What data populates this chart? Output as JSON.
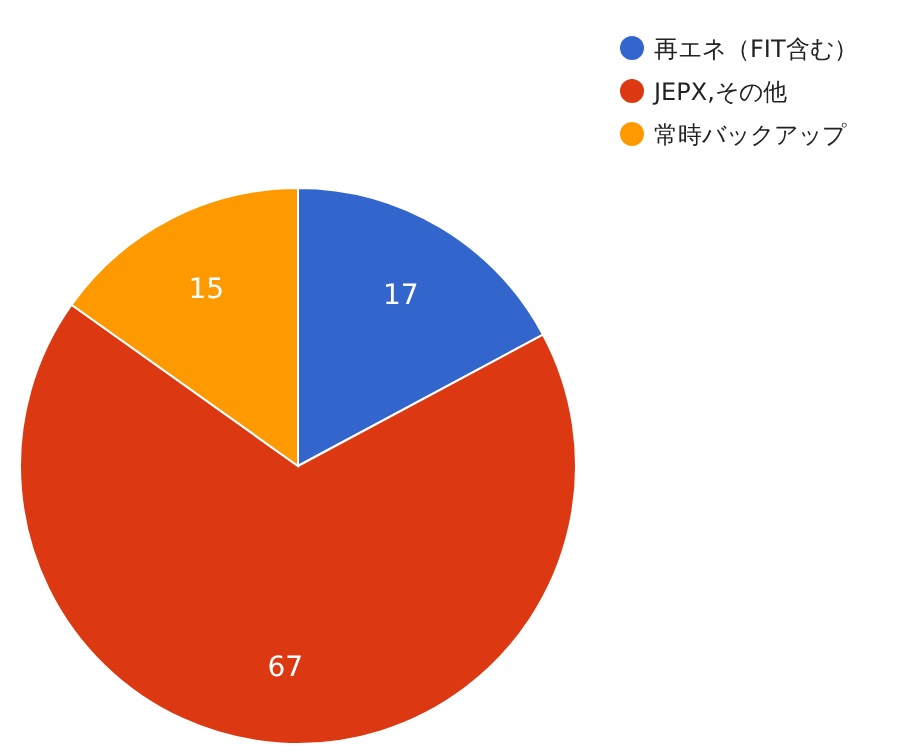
{
  "chart_data": {
    "type": "pie",
    "categories": [
      "再エネ（FIT含む）",
      "JEPX,その他",
      "常時バックアップ"
    ],
    "values": [
      17,
      67,
      15
    ],
    "colors": [
      "#3366cc",
      "#dc3912",
      "#ff9900"
    ],
    "data_labels": true,
    "legend": "top right"
  }
}
